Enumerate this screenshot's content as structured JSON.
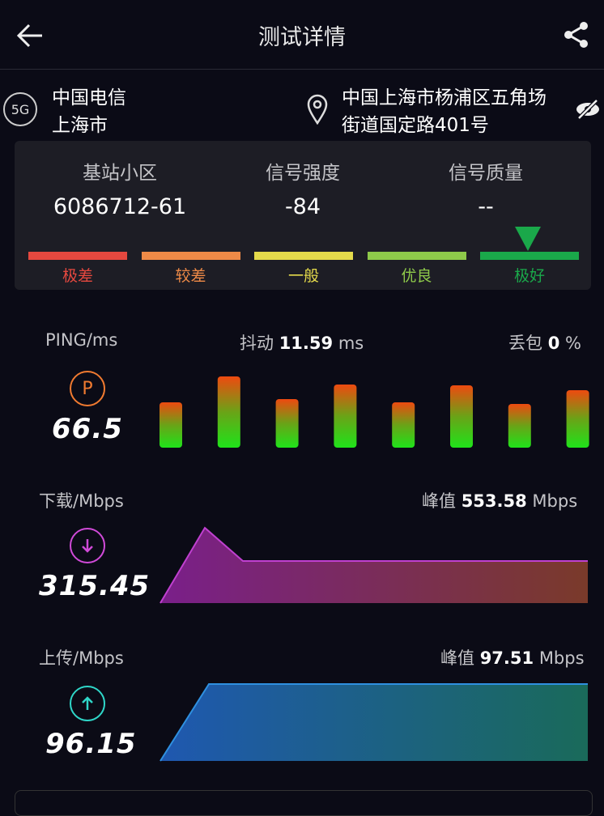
{
  "header": {
    "title": "测试详情",
    "back_icon": "arrow-left-icon",
    "share_icon": "share-icon"
  },
  "info": {
    "network_badge": "5G",
    "carrier": "中国电信",
    "city": "上海市",
    "address_line1": "中国上海市杨浦区五角场",
    "address_line2": "街道国定路401号"
  },
  "signal": {
    "cell_label": "基站小区",
    "cell_value": "6086712-61",
    "strength_label": "信号强度",
    "strength_value": "-84",
    "quality_label": "信号质量",
    "quality_value": "--",
    "levels": [
      {
        "label": "极差",
        "color": "#e5483f"
      },
      {
        "label": "较差",
        "color": "#ee8a47"
      },
      {
        "label": "一般",
        "color": "#e4da4b"
      },
      {
        "label": "优良",
        "color": "#8ec94a"
      },
      {
        "label": "极好",
        "color": "#1aa84a"
      }
    ],
    "selected_level": "极好"
  },
  "ping": {
    "label": "PING/ms",
    "jitter_label": "抖动",
    "jitter_value": "11.59",
    "jitter_unit": "ms",
    "loss_label": "丢包",
    "loss_value": "0",
    "loss_unit": "%",
    "icon_letter": "P",
    "value": "66.5",
    "bars": [
      56,
      88,
      60,
      78,
      56,
      77,
      54,
      71
    ]
  },
  "download": {
    "label": "下载/Mbps",
    "peak_label": "峰值",
    "peak_value": "553.58",
    "peak_unit": "Mbps",
    "value": "315.45",
    "color": "#d04ad8"
  },
  "upload": {
    "label": "上传/Mbps",
    "peak_label": "峰值",
    "peak_value": "97.51",
    "peak_unit": "Mbps",
    "value": "96.15",
    "color": "#2fd6c8"
  }
}
